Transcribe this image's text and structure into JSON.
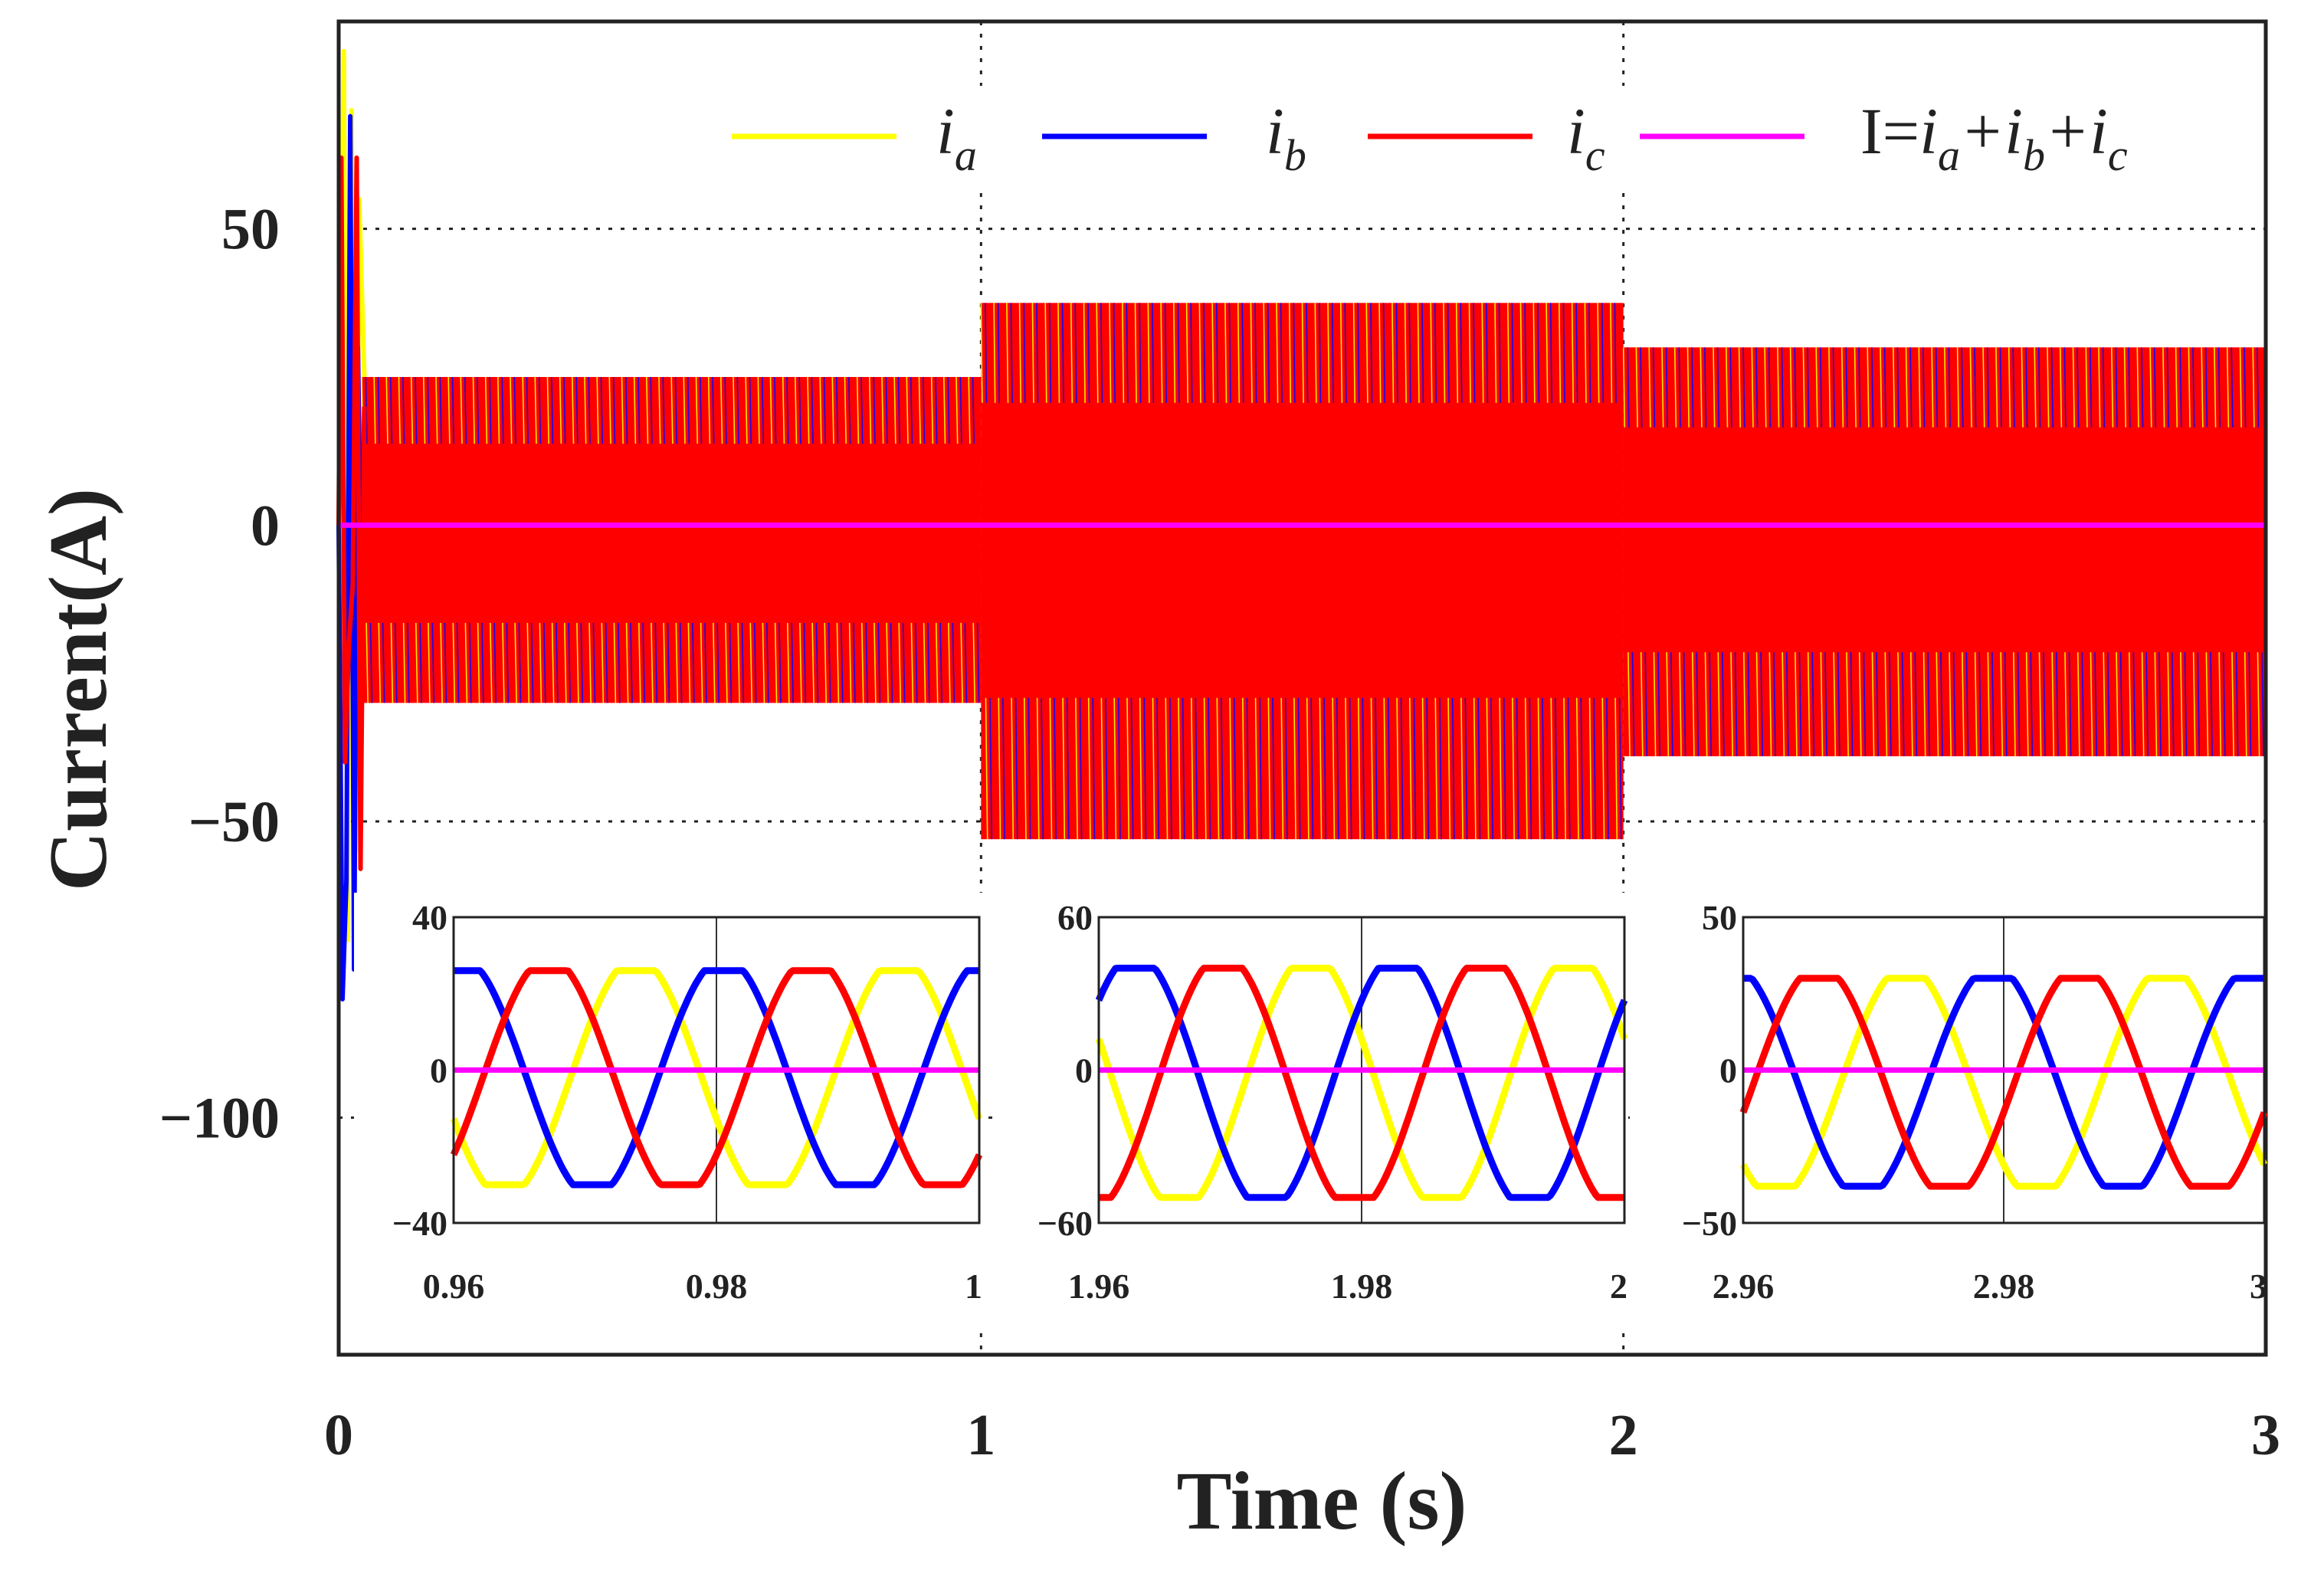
{
  "chart_data": {
    "type": "line",
    "xlabel": "Time (s)",
    "ylabel": "Current(A)",
    "xlim": [
      0,
      3
    ],
    "ylim": [
      -140,
      85
    ],
    "x_ticks": [
      "0",
      "1",
      "2",
      "3"
    ],
    "y_ticks": [
      "50",
      "0",
      "−50",
      "−100"
    ],
    "x_tick_values": [
      0,
      1,
      2,
      3
    ],
    "y_tick_values": [
      50,
      0,
      -50,
      -100
    ],
    "grid": true,
    "legend_location": "top-right",
    "legend": [
      {
        "series": "ia",
        "text": "i",
        "sub": "a"
      },
      {
        "series": "ib",
        "text": "i",
        "sub": "b"
      },
      {
        "series": "ic",
        "text": "i",
        "sub": "c"
      },
      {
        "series": "sum",
        "text": "I=",
        "expr": [
          [
            "i",
            "a"
          ],
          [
            "+i",
            "b"
          ],
          [
            "+i",
            "c"
          ]
        ]
      }
    ],
    "series": [
      {
        "name": "ia",
        "color": "#ffff00"
      },
      {
        "name": "ib",
        "color": "#0000ff"
      },
      {
        "name": "ic",
        "color": "#ff0000"
      },
      {
        "name": "I=ia+ib+ic",
        "color": "#ff00ff",
        "constant": 0
      }
    ],
    "segments": [
      {
        "t_start": 0,
        "t_end": 1,
        "upper": 25,
        "lower": -30
      },
      {
        "t_start": 1,
        "t_end": 2,
        "upper": 37.5,
        "lower": -53
      },
      {
        "t_start": 2,
        "t_end": 3,
        "upper": 30,
        "lower": -39
      }
    ],
    "freq_hz": 50,
    "insets": [
      {
        "xlim": [
          0.96,
          1.0
        ],
        "ylim": [
          -40,
          40
        ],
        "x_ticks": [
          "0.96",
          "0.98",
          "1"
        ],
        "x_tick_values": [
          0.96,
          0.98,
          1.0
        ],
        "y_ticks": [
          "40",
          "0",
          "−40"
        ],
        "y_tick_values": [
          40,
          0,
          -40
        ],
        "amplitude": 28,
        "offset": -2,
        "phase_a_deg": 200
      },
      {
        "xlim": [
          1.96,
          2.0
        ],
        "ylim": [
          -60,
          60
        ],
        "x_ticks": [
          "1.96",
          "1.98",
          "2"
        ],
        "x_tick_values": [
          1.96,
          1.98,
          2.0
        ],
        "y_ticks": [
          "60",
          "0",
          "−60"
        ],
        "y_tick_values": [
          60,
          0,
          -60
        ],
        "amplitude": 45,
        "offset": -5,
        "phase_a_deg": 160
      },
      {
        "xlim": [
          2.96,
          3.0
        ],
        "ylim": [
          -50,
          50
        ],
        "x_ticks": [
          "2.96",
          "2.98",
          "3"
        ],
        "x_tick_values": [
          2.96,
          2.98,
          3.0
        ],
        "y_ticks": [
          "50",
          "0",
          "−50"
        ],
        "y_tick_values": [
          50,
          0,
          -50
        ],
        "amplitude": 34,
        "offset": -4,
        "phase_a_deg": 225
      }
    ]
  }
}
